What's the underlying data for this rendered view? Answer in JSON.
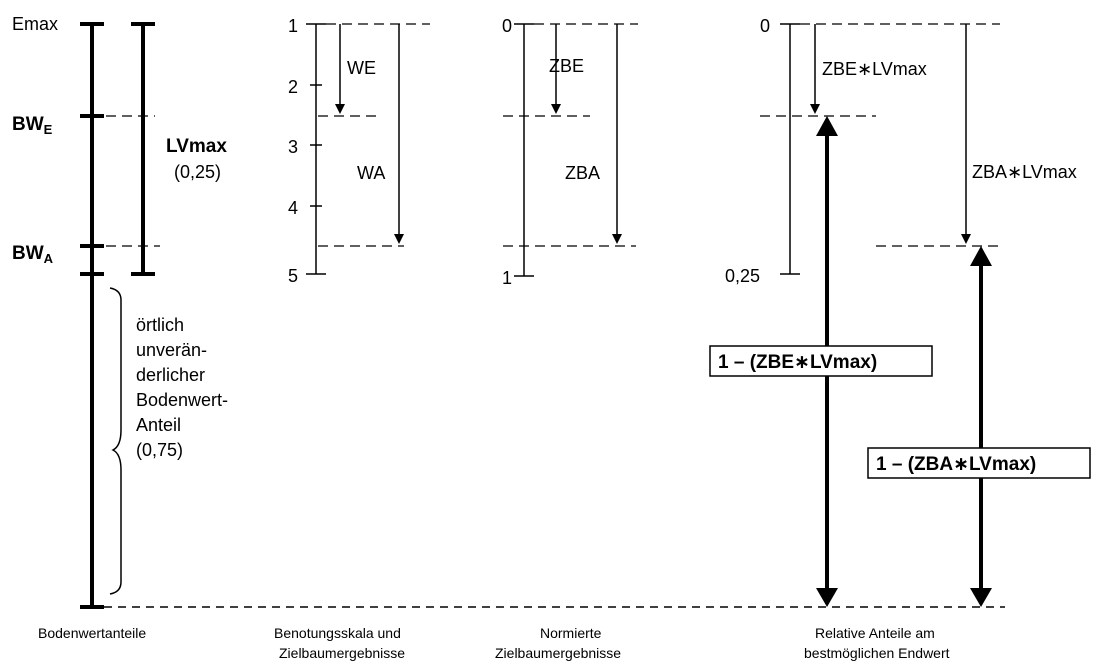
{
  "col1": {
    "emax": "Emax",
    "bw_e_main": "BW",
    "bw_e_sub": "E",
    "bw_a_main": "BW",
    "bw_a_sub": "A",
    "lvmax": "LVmax",
    "lvmax_value": "(0,25)",
    "constant_lines": [
      "örtlich",
      "unverän-",
      "derlicher",
      "Bodenwert-",
      "Anteil",
      "(0,75)"
    ],
    "caption": "Bodenwertanteile"
  },
  "col2": {
    "ticks": [
      "1",
      "2",
      "3",
      "4",
      "5"
    ],
    "we": "WE",
    "wa": "WA",
    "caption_lines": [
      "Benotungsskala und",
      "Zielbaumergebnisse"
    ]
  },
  "col3": {
    "top": "0",
    "bottom": "1",
    "zbe": "ZBE",
    "zba": "ZBA",
    "caption_lines": [
      "Normierte",
      "Zielbaumergebnisse"
    ]
  },
  "col4": {
    "top": "0",
    "bottom": "0,25",
    "zbe_lv": "ZBE∗LVmax",
    "zba_lv": "ZBA∗LVmax",
    "box1": "1 – (ZBE∗LVmax)",
    "box2": "1 – (ZBA∗LVmax)",
    "caption_lines": [
      "Relative Anteile am",
      "bestmöglichen Endwert"
    ]
  }
}
